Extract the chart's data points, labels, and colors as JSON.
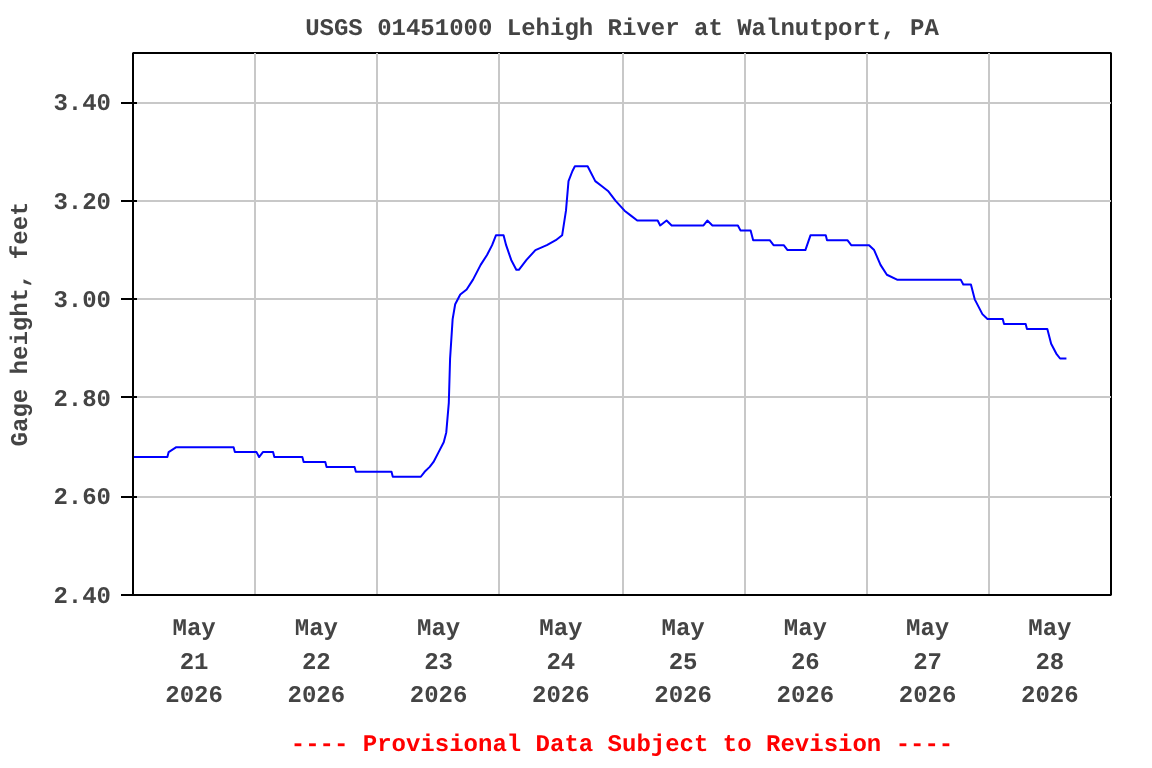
{
  "chart_data": {
    "type": "line",
    "title": "USGS 01451000 Lehigh River at Walnutport, PA",
    "ylabel": "Gage height, feet",
    "annotations": [
      "---- Provisional Data Subject to Revision ----"
    ],
    "grid": true,
    "line_style": "solid",
    "xlim": [
      "2026-05-21T00:00",
      "2026-05-29T00:00"
    ],
    "xticks": [
      {
        "value": "2026-05-21T12:00",
        "label": "May 21 2026"
      },
      {
        "value": "2026-05-22T12:00",
        "label": "May 22 2026"
      },
      {
        "value": "2026-05-23T12:00",
        "label": "May 23 2026"
      },
      {
        "value": "2026-05-24T12:00",
        "label": "May 24 2026"
      },
      {
        "value": "2026-05-25T12:00",
        "label": "May 25 2026"
      },
      {
        "value": "2026-05-26T12:00",
        "label": "May 26 2026"
      },
      {
        "value": "2026-05-27T12:00",
        "label": "May 27 2026"
      },
      {
        "value": "2026-05-28T12:00",
        "label": "May 28 2026"
      },
      {
        "value": "2026-05-22T00:00",
        "label": null
      },
      {
        "value": "2026-05-23T00:00",
        "label": null
      },
      {
        "value": "2026-05-24T00:00",
        "label": null
      },
      {
        "value": "2026-05-25T00:00",
        "label": null
      },
      {
        "value": "2026-05-26T00:00",
        "label": null
      },
      {
        "value": "2026-05-27T00:00",
        "label": null
      },
      {
        "value": "2026-05-28T00:00",
        "label": null
      }
    ],
    "ylim": [
      2.4,
      3.5
    ],
    "yticks": [
      {
        "value": 2.4,
        "label": "2.40"
      },
      {
        "value": 2.6,
        "label": "2.60"
      },
      {
        "value": 2.8,
        "label": "2.80"
      },
      {
        "value": 3.0,
        "label": "3.00"
      },
      {
        "value": 3.2,
        "label": "3.20"
      },
      {
        "value": 3.4,
        "label": "3.40"
      }
    ],
    "series": [
      {
        "color": "#0000ff",
        "x": [
          "2026-05-21T00:00",
          "2026-05-21T06:45",
          "2026-05-21T07:00",
          "2026-05-21T08:30",
          "2026-05-21T19:45",
          "2026-05-21T20:00",
          "2026-05-22T00:15",
          "2026-05-22T00:45",
          "2026-05-22T01:30",
          "2026-05-22T03:30",
          "2026-05-22T03:45",
          "2026-05-22T09:15",
          "2026-05-22T09:30",
          "2026-05-22T13:45",
          "2026-05-22T14:00",
          "2026-05-22T19:30",
          "2026-05-22T19:45",
          "2026-05-23T02:45",
          "2026-05-23T03:00",
          "2026-05-23T08:30",
          "2026-05-23T09:15",
          "2026-05-23T10:15",
          "2026-05-23T11:00",
          "2026-05-23T12:00",
          "2026-05-23T13:00",
          "2026-05-23T13:30",
          "2026-05-23T14:00",
          "2026-05-23T14:15",
          "2026-05-23T14:45",
          "2026-05-23T15:15",
          "2026-05-23T16:15",
          "2026-05-23T17:30",
          "2026-05-23T18:45",
          "2026-05-23T20:15",
          "2026-05-23T21:30",
          "2026-05-23T22:30",
          "2026-05-23T23:15",
          "2026-05-24T00:45",
          "2026-05-24T01:15",
          "2026-05-24T02:15",
          "2026-05-24T03:15",
          "2026-05-24T03:45",
          "2026-05-24T05:15",
          "2026-05-24T07:00",
          "2026-05-24T09:15",
          "2026-05-24T11:00",
          "2026-05-24T12:15",
          "2026-05-24T13:00",
          "2026-05-24T13:30",
          "2026-05-24T14:15",
          "2026-05-24T14:45",
          "2026-05-24T17:15",
          "2026-05-24T18:45",
          "2026-05-24T20:00",
          "2026-05-24T21:15",
          "2026-05-24T22:45",
          "2026-05-25T00:30",
          "2026-05-25T01:45",
          "2026-05-25T03:00",
          "2026-05-25T07:00",
          "2026-05-25T07:30",
          "2026-05-25T08:45",
          "2026-05-25T09:45",
          "2026-05-25T16:00",
          "2026-05-25T16:45",
          "2026-05-25T17:45",
          "2026-05-25T22:45",
          "2026-05-25T23:15",
          "2026-05-26T01:15",
          "2026-05-26T01:45",
          "2026-05-26T05:00",
          "2026-05-26T05:45",
          "2026-05-26T07:45",
          "2026-05-26T08:30",
          "2026-05-26T12:00",
          "2026-05-26T13:00",
          "2026-05-26T16:00",
          "2026-05-26T16:15",
          "2026-05-26T20:15",
          "2026-05-26T21:00",
          "2026-05-27T00:30",
          "2026-05-27T01:30",
          "2026-05-27T02:45",
          "2026-05-27T04:00",
          "2026-05-27T06:00",
          "2026-05-27T18:30",
          "2026-05-27T19:00",
          "2026-05-27T20:30",
          "2026-05-27T21:15",
          "2026-05-27T22:45",
          "2026-05-27T23:45",
          "2026-05-28T02:45",
          "2026-05-28T03:00",
          "2026-05-28T07:15",
          "2026-05-28T07:30",
          "2026-05-28T11:30",
          "2026-05-28T12:15",
          "2026-05-28T13:15",
          "2026-05-28T14:00",
          "2026-05-28T15:15"
        ],
        "values": [
          2.68,
          2.68,
          2.69,
          2.7,
          2.7,
          2.69,
          2.69,
          2.68,
          2.69,
          2.69,
          2.68,
          2.68,
          2.67,
          2.67,
          2.66,
          2.66,
          2.65,
          2.65,
          2.64,
          2.64,
          2.65,
          2.66,
          2.67,
          2.69,
          2.71,
          2.73,
          2.79,
          2.88,
          2.96,
          2.99,
          3.01,
          3.02,
          3.04,
          3.07,
          3.09,
          3.11,
          3.13,
          3.13,
          3.11,
          3.08,
          3.06,
          3.06,
          3.08,
          3.1,
          3.11,
          3.12,
          3.13,
          3.18,
          3.24,
          3.26,
          3.27,
          3.27,
          3.24,
          3.23,
          3.22,
          3.2,
          3.18,
          3.17,
          3.16,
          3.16,
          3.15,
          3.16,
          3.15,
          3.15,
          3.16,
          3.15,
          3.15,
          3.14,
          3.14,
          3.12,
          3.12,
          3.11,
          3.11,
          3.1,
          3.1,
          3.13,
          3.13,
          3.12,
          3.12,
          3.11,
          3.11,
          3.1,
          3.07,
          3.05,
          3.04,
          3.04,
          3.03,
          3.03,
          3.0,
          2.97,
          2.96,
          2.96,
          2.95,
          2.95,
          2.94,
          2.94,
          2.91,
          2.89,
          2.88,
          2.88
        ]
      }
    ]
  }
}
